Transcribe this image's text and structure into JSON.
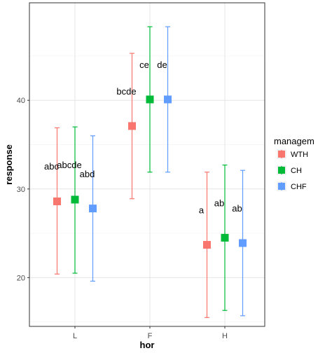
{
  "chart_data": {
    "type": "scatter",
    "variant": "point-with-errorbars",
    "xlabel": "hor",
    "ylabel": "response",
    "categories": [
      "L",
      "F",
      "H"
    ],
    "ylim": [
      14.5,
      51
    ],
    "yticks": [
      20,
      30,
      40
    ],
    "grid": true,
    "legend": {
      "title": "managem",
      "placement": "right"
    },
    "series": [
      {
        "name": "WTH",
        "color": "#F8766D",
        "values": [
          28.6,
          37.1,
          23.7
        ],
        "lower": [
          20.4,
          28.9,
          15.5
        ],
        "upper": [
          36.9,
          45.3,
          31.9
        ],
        "letters": [
          "abc",
          "bcde",
          "a"
        ]
      },
      {
        "name": "CH",
        "color": "#00BA38",
        "values": [
          28.8,
          40.1,
          24.5
        ],
        "lower": [
          20.5,
          31.9,
          16.3
        ],
        "upper": [
          37.0,
          48.3,
          32.7
        ],
        "letters": [
          "abcde",
          "ce",
          "ab"
        ]
      },
      {
        "name": "CHF",
        "color": "#619CFF",
        "values": [
          27.8,
          40.1,
          23.9
        ],
        "lower": [
          19.6,
          31.9,
          15.7
        ],
        "upper": [
          36.0,
          48.3,
          32.1
        ],
        "letters": [
          "abd",
          "de",
          "ab"
        ]
      }
    ]
  }
}
